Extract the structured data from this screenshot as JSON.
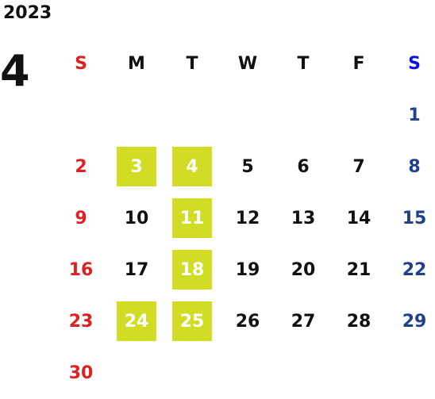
{
  "year": "2023",
  "month": "4",
  "weekdays": [
    "S",
    "M",
    "T",
    "W",
    "T",
    "F",
    "S"
  ],
  "highlight_color": "#d3dc24",
  "sunday_color": "#e02020",
  "saturday_color": "#1f3f8f",
  "weeks": [
    [
      "",
      "",
      "",
      "",
      "",
      "",
      "1"
    ],
    [
      "2",
      "3",
      "4",
      "5",
      "6",
      "7",
      "8"
    ],
    [
      "9",
      "10",
      "11",
      "12",
      "13",
      "14",
      "15"
    ],
    [
      "16",
      "17",
      "18",
      "19",
      "20",
      "21",
      "22"
    ],
    [
      "23",
      "24",
      "25",
      "26",
      "27",
      "28",
      "29"
    ],
    [
      "30",
      "",
      "",
      "",
      "",
      "",
      ""
    ]
  ],
  "highlighted_days": [
    "3",
    "4",
    "11",
    "18",
    "24",
    "25"
  ]
}
